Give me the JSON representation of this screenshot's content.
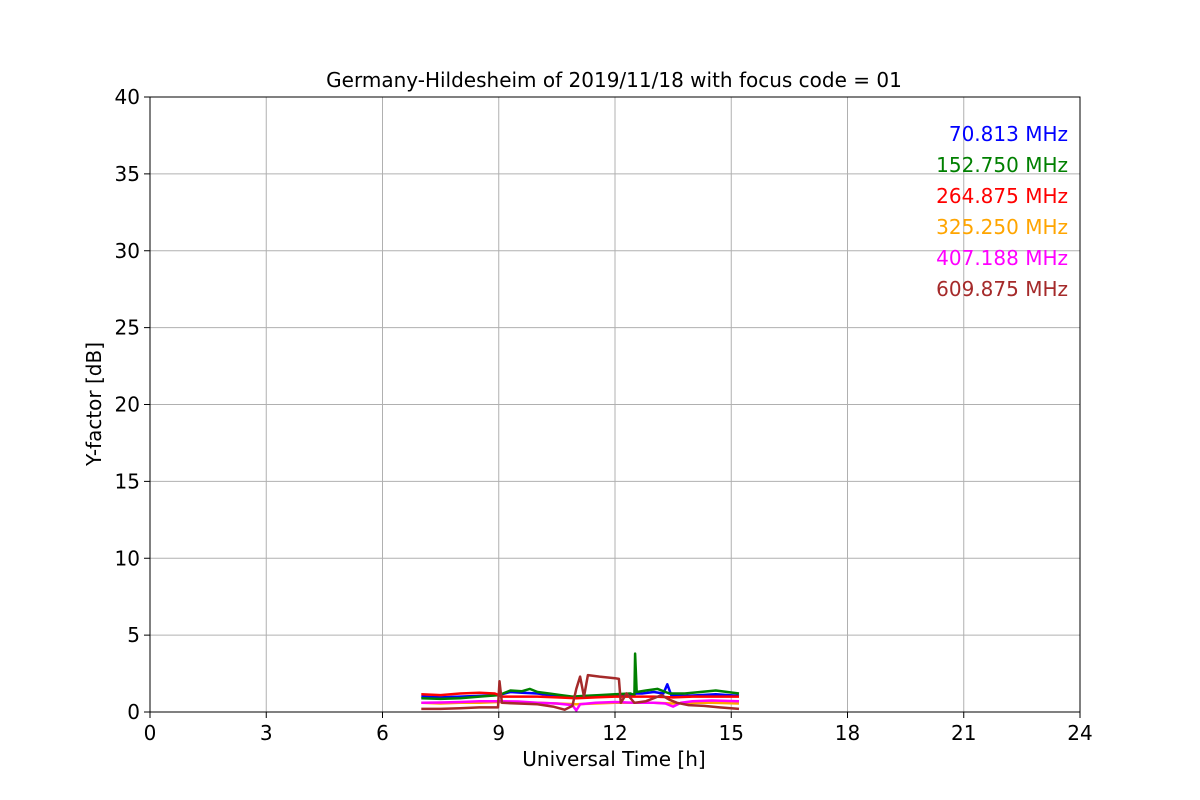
{
  "chart_data": {
    "type": "line",
    "title": "Germany-Hildesheim of 2019/11/18 with focus code = 01",
    "xlabel": "Universal Time [h]",
    "ylabel": "Y-factor [dB]",
    "xlim": [
      0,
      24
    ],
    "ylim": [
      0,
      40
    ],
    "xticks": [
      0,
      3,
      6,
      9,
      12,
      15,
      18,
      21,
      24
    ],
    "yticks": [
      0,
      5,
      10,
      15,
      20,
      25,
      30,
      35,
      40
    ],
    "grid": true,
    "legend_position": "top-right",
    "series": [
      {
        "name": "70.813 MHz",
        "color": "#0000ff",
        "points": [
          [
            7.0,
            1.0
          ],
          [
            7.5,
            0.95
          ],
          [
            8.0,
            1.0
          ],
          [
            8.5,
            1.05
          ],
          [
            9.0,
            1.1
          ],
          [
            9.3,
            1.3
          ],
          [
            9.6,
            1.25
          ],
          [
            10.0,
            1.2
          ],
          [
            10.3,
            1.1
          ],
          [
            10.6,
            1.0
          ],
          [
            11.0,
            0.95
          ],
          [
            11.5,
            1.0
          ],
          [
            12.0,
            1.1
          ],
          [
            12.4,
            1.1
          ],
          [
            12.55,
            1.2
          ],
          [
            12.7,
            1.2
          ],
          [
            13.0,
            1.3
          ],
          [
            13.25,
            1.2
          ],
          [
            13.35,
            1.8
          ],
          [
            13.45,
            1.1
          ],
          [
            13.8,
            1.05
          ],
          [
            14.2,
            1.1
          ],
          [
            14.6,
            1.15
          ],
          [
            15.2,
            1.05
          ]
        ]
      },
      {
        "name": "152.750 MHz",
        "color": "#008000",
        "points": [
          [
            7.0,
            0.9
          ],
          [
            7.5,
            0.85
          ],
          [
            8.0,
            0.9
          ],
          [
            8.5,
            1.0
          ],
          [
            9.0,
            1.1
          ],
          [
            9.3,
            1.4
          ],
          [
            9.6,
            1.35
          ],
          [
            9.8,
            1.5
          ],
          [
            10.0,
            1.3
          ],
          [
            10.3,
            1.2
          ],
          [
            10.6,
            1.1
          ],
          [
            10.9,
            1.0
          ],
          [
            11.2,
            1.05
          ],
          [
            11.6,
            1.1
          ],
          [
            12.0,
            1.15
          ],
          [
            12.4,
            1.2
          ],
          [
            12.5,
            1.1
          ],
          [
            12.52,
            3.8
          ],
          [
            12.56,
            1.3
          ],
          [
            12.8,
            1.4
          ],
          [
            13.1,
            1.5
          ],
          [
            13.4,
            1.2
          ],
          [
            13.8,
            1.2
          ],
          [
            14.2,
            1.3
          ],
          [
            14.6,
            1.4
          ],
          [
            15.2,
            1.2
          ]
        ]
      },
      {
        "name": "264.875 MHz",
        "color": "#ff0000",
        "points": [
          [
            7.0,
            1.15
          ],
          [
            7.5,
            1.1
          ],
          [
            8.0,
            1.2
          ],
          [
            8.5,
            1.25
          ],
          [
            8.9,
            1.2
          ],
          [
            9.1,
            1.0
          ],
          [
            9.5,
            1.0
          ],
          [
            10.0,
            1.0
          ],
          [
            10.5,
            0.95
          ],
          [
            11.0,
            0.9
          ],
          [
            11.5,
            0.95
          ],
          [
            12.0,
            1.0
          ],
          [
            12.5,
            1.0
          ],
          [
            13.0,
            1.0
          ],
          [
            13.5,
            0.95
          ],
          [
            14.0,
            1.0
          ],
          [
            14.5,
            1.0
          ],
          [
            15.2,
            1.0
          ]
        ]
      },
      {
        "name": "325.250 MHz",
        "color": "#ffa500",
        "points": [
          [
            7.0,
            0.6
          ],
          [
            7.5,
            0.55
          ],
          [
            8.0,
            0.6
          ],
          [
            8.5,
            0.6
          ],
          [
            9.0,
            0.65
          ],
          [
            9.5,
            0.6
          ],
          [
            10.0,
            0.6
          ],
          [
            10.5,
            0.55
          ],
          [
            11.0,
            0.5
          ],
          [
            11.5,
            0.55
          ],
          [
            12.0,
            0.6
          ],
          [
            12.5,
            0.6
          ],
          [
            13.0,
            0.6
          ],
          [
            13.5,
            0.55
          ],
          [
            14.0,
            0.6
          ],
          [
            14.5,
            0.6
          ],
          [
            15.2,
            0.55
          ]
        ]
      },
      {
        "name": "407.188 MHz",
        "color": "#ff00ff",
        "points": [
          [
            7.0,
            0.6
          ],
          [
            7.5,
            0.62
          ],
          [
            8.0,
            0.65
          ],
          [
            8.5,
            0.7
          ],
          [
            9.0,
            0.7
          ],
          [
            9.5,
            0.68
          ],
          [
            10.0,
            0.6
          ],
          [
            10.5,
            0.55
          ],
          [
            10.9,
            0.45
          ],
          [
            11.0,
            0.1
          ],
          [
            11.1,
            0.5
          ],
          [
            11.5,
            0.6
          ],
          [
            12.0,
            0.65
          ],
          [
            12.5,
            0.6
          ],
          [
            13.0,
            0.6
          ],
          [
            13.3,
            0.55
          ],
          [
            13.5,
            0.35
          ],
          [
            13.7,
            0.6
          ],
          [
            14.0,
            0.7
          ],
          [
            14.5,
            0.75
          ],
          [
            15.2,
            0.7
          ]
        ]
      },
      {
        "name": "609.875 MHz",
        "color": "#a52a2a",
        "points": [
          [
            7.0,
            0.2
          ],
          [
            7.5,
            0.2
          ],
          [
            8.0,
            0.25
          ],
          [
            8.5,
            0.3
          ],
          [
            8.98,
            0.3
          ],
          [
            9.02,
            2.0
          ],
          [
            9.08,
            0.6
          ],
          [
            9.5,
            0.55
          ],
          [
            10.0,
            0.5
          ],
          [
            10.4,
            0.35
          ],
          [
            10.7,
            0.15
          ],
          [
            10.9,
            0.4
          ],
          [
            11.0,
            1.5
          ],
          [
            11.1,
            2.3
          ],
          [
            11.2,
            1.0
          ],
          [
            11.3,
            2.4
          ],
          [
            11.6,
            2.3
          ],
          [
            12.0,
            2.2
          ],
          [
            12.1,
            2.15
          ],
          [
            12.15,
            0.6
          ],
          [
            12.3,
            1.2
          ],
          [
            12.5,
            0.6
          ],
          [
            12.8,
            0.7
          ],
          [
            13.0,
            0.9
          ],
          [
            13.2,
            1.1
          ],
          [
            13.4,
            0.8
          ],
          [
            13.6,
            0.6
          ],
          [
            13.9,
            0.45
          ],
          [
            14.3,
            0.4
          ],
          [
            14.7,
            0.3
          ],
          [
            15.2,
            0.2
          ]
        ]
      }
    ]
  }
}
